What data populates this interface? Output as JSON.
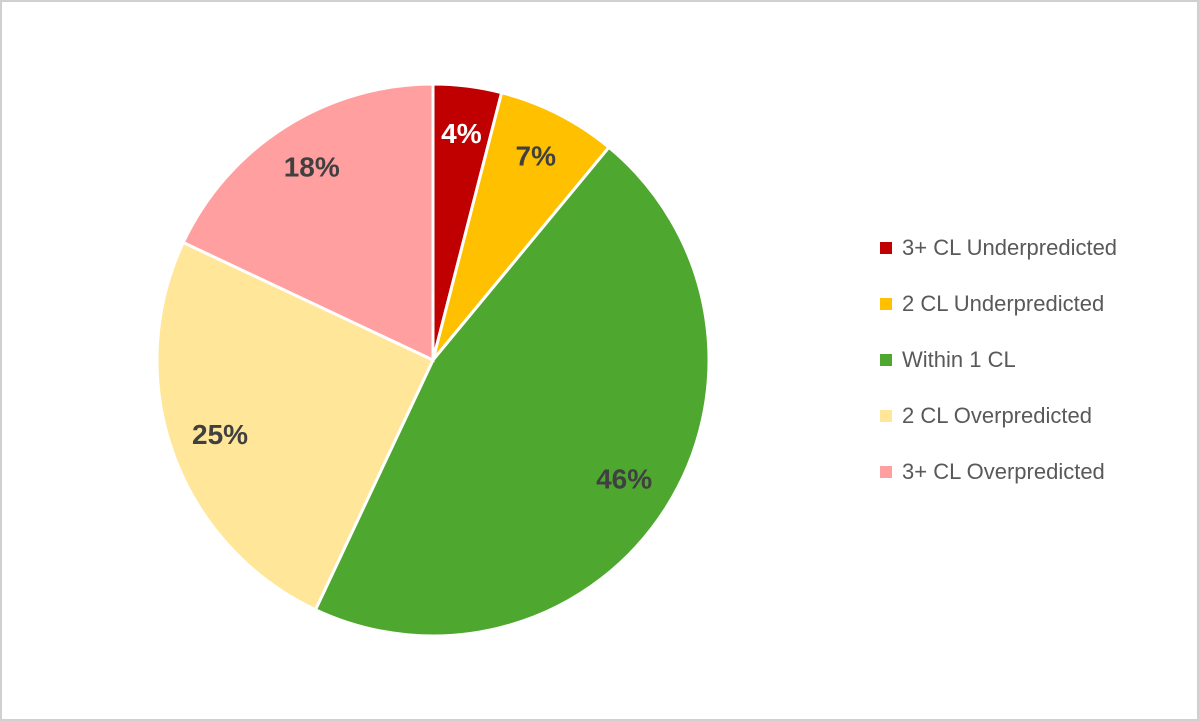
{
  "chart_data": {
    "type": "pie",
    "categories": [
      "3+ CL Underpredicted",
      "2 CL Underpredicted",
      "Within 1 CL",
      "2 CL Overpredicted",
      "3+ CL Overpredicted"
    ],
    "values": [
      4,
      7,
      46,
      25,
      18
    ],
    "value_labels": [
      "4%",
      "7%",
      "46%",
      "25%",
      "18%"
    ],
    "colors": [
      "#c00000",
      "#ffc000",
      "#4ea72e",
      "#ffe699",
      "#ff9f9f"
    ],
    "label_colors": [
      "#ffffff",
      "#404040",
      "#404040",
      "#404040",
      "#404040"
    ],
    "legend": "right"
  }
}
